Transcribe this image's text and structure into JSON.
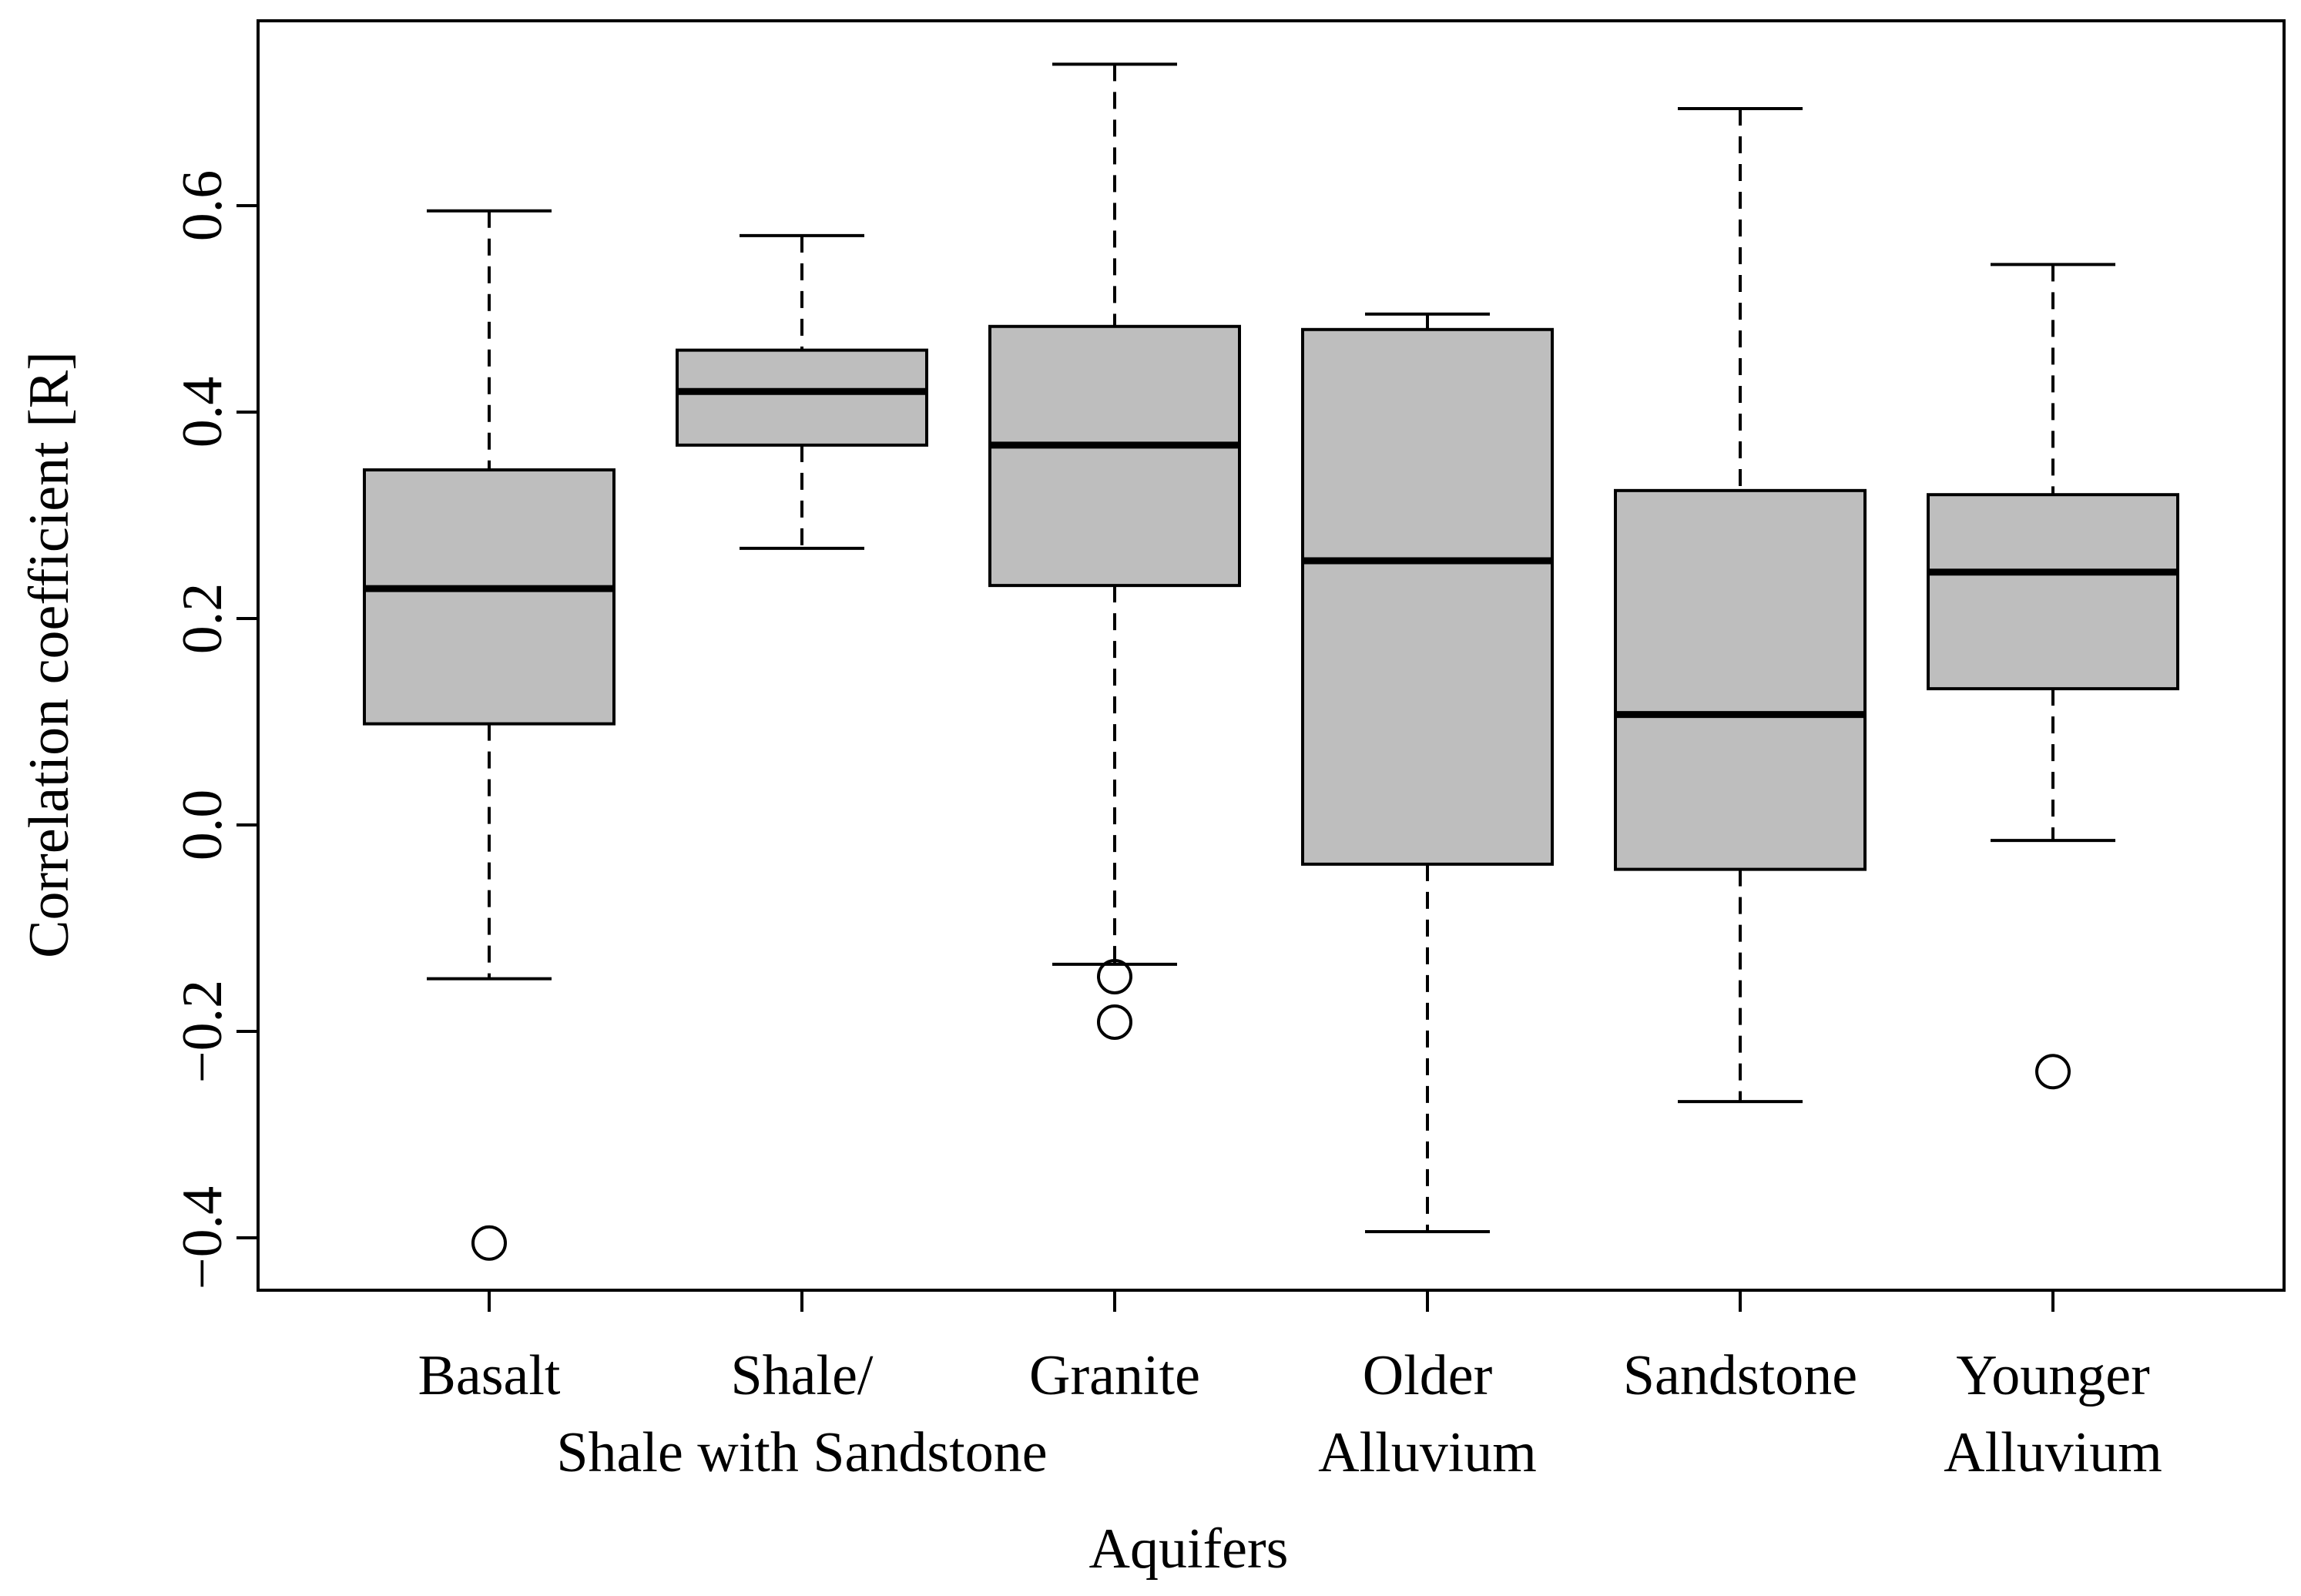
{
  "chart_data": {
    "type": "boxplot",
    "title": "",
    "xlabel": "Aquifers",
    "ylabel": "Correlation coefficient [R]",
    "ylim": [
      -0.45,
      0.78
    ],
    "yticks": [
      -0.4,
      -0.2,
      0.0,
      0.2,
      0.4,
      0.6
    ],
    "ytick_labels": [
      "−0.4",
      "−0.2",
      "0.0",
      "0.2",
      "0.4",
      "0.6"
    ],
    "box_fill": "#bebebe",
    "stroke_color": "#000000",
    "categories": [
      {
        "lines": [
          "Basalt"
        ]
      },
      {
        "lines": [
          "Shale/",
          "Shale with Sandstone"
        ]
      },
      {
        "lines": [
          "Granite"
        ]
      },
      {
        "lines": [
          "Older",
          "Alluvium"
        ]
      },
      {
        "lines": [
          "Sandstone"
        ]
      },
      {
        "lines": [
          "Younger",
          "Alluvium"
        ]
      }
    ],
    "boxes": [
      {
        "whisker_low": -0.149,
        "q1": 0.098,
        "median": 0.229,
        "q3": 0.344,
        "whisker_high": 0.595,
        "outliers": [
          -0.405
        ]
      },
      {
        "whisker_low": 0.268,
        "q1": 0.368,
        "median": 0.42,
        "q3": 0.46,
        "whisker_high": 0.571,
        "outliers": []
      },
      {
        "whisker_low": -0.135,
        "q1": 0.232,
        "median": 0.368,
        "q3": 0.483,
        "whisker_high": 0.737,
        "outliers": [
          -0.147,
          -0.191
        ]
      },
      {
        "whisker_low": -0.394,
        "q1": -0.038,
        "median": 0.256,
        "q3": 0.48,
        "whisker_high": 0.495,
        "outliers": []
      },
      {
        "whisker_low": -0.268,
        "q1": -0.043,
        "median": 0.107,
        "q3": 0.324,
        "whisker_high": 0.694,
        "outliers": []
      },
      {
        "whisker_low": -0.015,
        "q1": 0.132,
        "median": 0.245,
        "q3": 0.32,
        "whisker_high": 0.543,
        "outliers": [
          -0.239
        ]
      }
    ]
  }
}
